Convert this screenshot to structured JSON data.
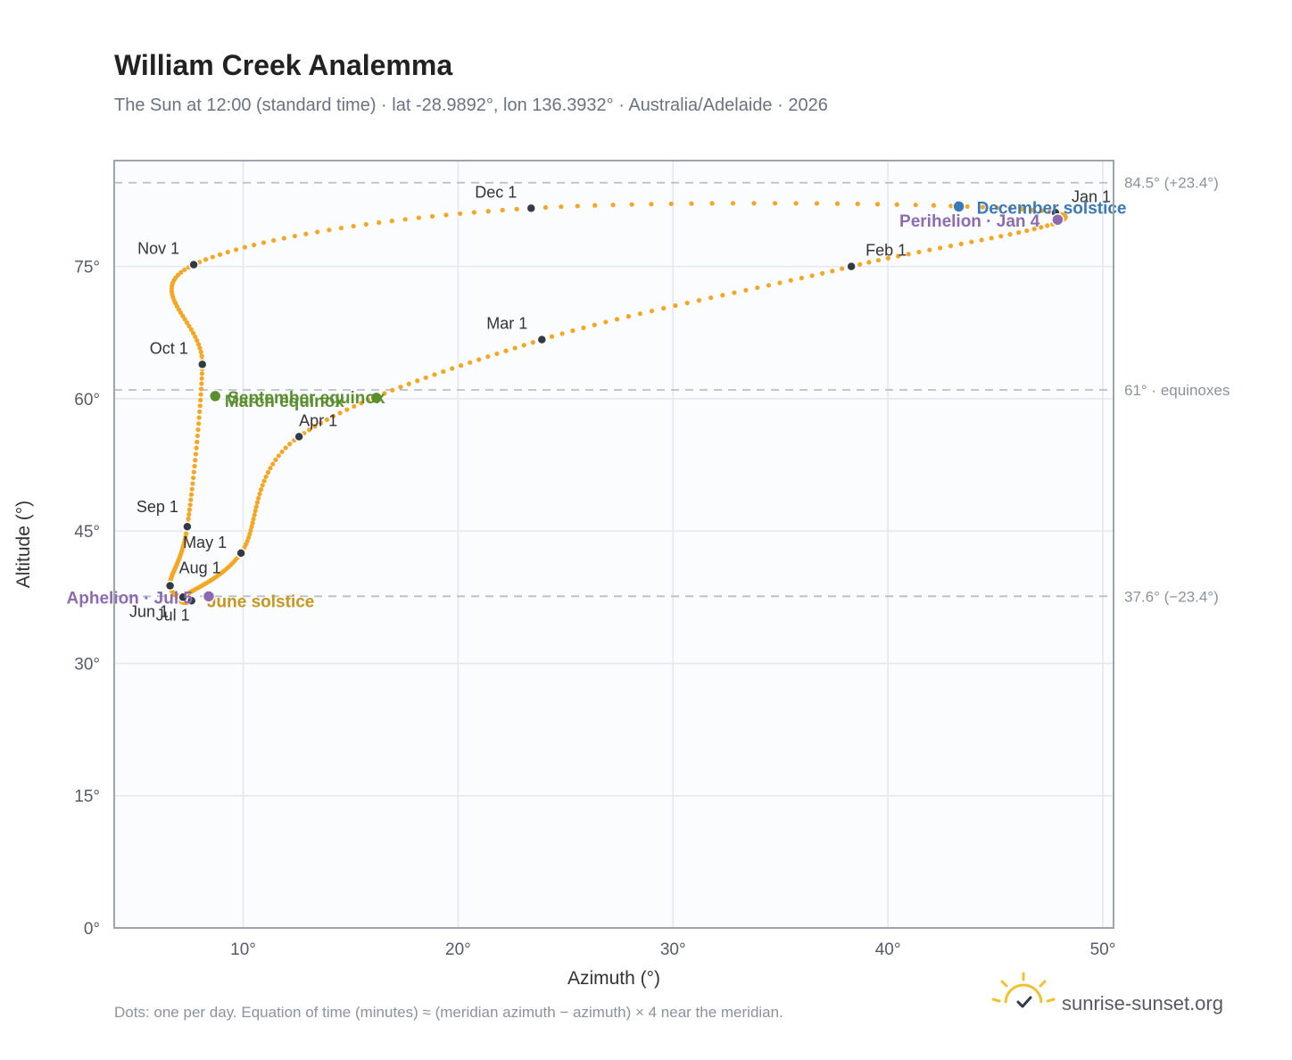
{
  "title": "William Creek Analemma",
  "subtitle": "The Sun at 12:00 (standard time) · lat -28.9892°, lon 136.3932° · Australia/Adelaide · 2026",
  "footnote": "Dots: one per day. Equation of time (minutes) ≈ (meridian azimuth − azimuth) × 4 near the meridian.",
  "brand": "sunrise-sunset.org",
  "colors": {
    "curve": "#f5a623",
    "month_marker": "#333a44",
    "plot_bg": "#fafcfe",
    "frame": "#9aa5b1",
    "grid": "#e3e8ee",
    "ref_line": "#b8c0c9",
    "equinox": "#5b8f2e",
    "december_solstice": "#3a78b8",
    "june_solstice": "#c8961d",
    "apsis": "#8e6bb0"
  },
  "chart_data": {
    "type": "scatter",
    "title": "William Creek Analemma",
    "subtitle": "The Sun at 12:00 (standard time) · lat -28.9892°, lon 136.3932° · Australia/Adelaide · 2026",
    "xlabel": "Azimuth (°)",
    "ylabel": "Altitude (°)",
    "xlim": [
      4,
      50.5
    ],
    "ylim": [
      0,
      87
    ],
    "xticks": [
      10,
      20,
      30,
      40,
      50
    ],
    "yticks": [
      0,
      15,
      30,
      45,
      60,
      75
    ],
    "grid": true,
    "months": [
      {
        "label": "Jan 1",
        "x": 47.8,
        "y": 81.1
      },
      {
        "label": "Feb 1",
        "x": 38.3,
        "y": 75.0
      },
      {
        "label": "Mar 1",
        "x": 23.9,
        "y": 66.7
      },
      {
        "label": "Apr 1",
        "x": 12.6,
        "y": 55.7
      },
      {
        "label": "May 1",
        "x": 9.9,
        "y": 42.5
      },
      {
        "label": "Jun 1",
        "x": 7.2,
        "y": 37.5
      },
      {
        "label": "Jul 1",
        "x": 7.6,
        "y": 37.1
      },
      {
        "label": "Aug 1",
        "x": 6.6,
        "y": 38.8
      },
      {
        "label": "Sep 1",
        "x": 7.4,
        "y": 45.5
      },
      {
        "label": "Oct 1",
        "x": 8.1,
        "y": 63.9
      },
      {
        "label": "Nov 1",
        "x": 7.7,
        "y": 75.2
      },
      {
        "label": "Dec 1",
        "x": 23.4,
        "y": 81.6
      }
    ],
    "events": [
      {
        "label": "March equinox",
        "x": 16.2,
        "y": 60.1,
        "color": "#5b8f2e"
      },
      {
        "label": "September equinox",
        "x": 8.7,
        "y": 60.3,
        "color": "#5b8f2e"
      },
      {
        "label": "December solstice",
        "x": 43.3,
        "y": 81.8,
        "color": "#3a78b8"
      },
      {
        "label": "June solstice",
        "x": 8.4,
        "y": 37.6,
        "color": "#c8961d"
      },
      {
        "label": "Perihelion · Jan 4",
        "x": 47.9,
        "y": 80.3,
        "color": "#8e6bb0"
      },
      {
        "label": "Aphelion · Jul 5",
        "x": 8.4,
        "y": 37.6,
        "color": "#8e6bb0"
      }
    ],
    "reference_lines": [
      {
        "label": "84.5° (+23.4°)",
        "y": 84.5
      },
      {
        "label": "61° · equinoxes",
        "y": 61
      },
      {
        "label": "37.6° (−23.4°)",
        "y": 37.6
      }
    ]
  }
}
